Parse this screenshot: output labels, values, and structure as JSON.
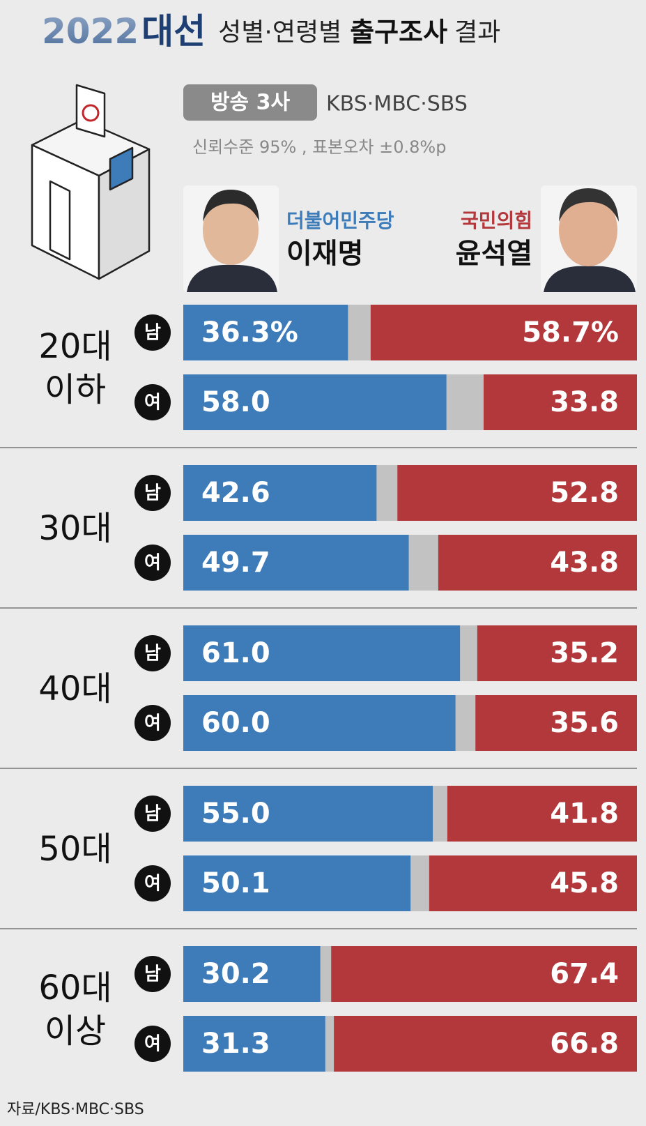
{
  "header": {
    "year": "2022",
    "main": "대선",
    "sub1": "성별·연령별",
    "bold": "출구조사",
    "sub2": "결과",
    "badge": "방송 3사",
    "broadcasters": "KBS·MBC·SBS",
    "note": "신뢰수준 95% , 표본오차 ±0.8%p"
  },
  "chart_data": {
    "type": "bar",
    "groups": [
      [
        "20대",
        "이하"
      ],
      [
        "30대"
      ],
      [
        "40대"
      ],
      [
        "50대"
      ],
      [
        "60대",
        "이상"
      ]
    ],
    "categories": [
      "남",
      "여",
      "남",
      "여",
      "남",
      "여",
      "남",
      "여",
      "남",
      "여"
    ],
    "xlim": [
      0,
      100
    ],
    "series": [
      {
        "name": "이재명",
        "party": "더불어민주당",
        "color": "#3d7bb9",
        "anchor": "start",
        "values": [
          36.3,
          58.0,
          42.6,
          49.7,
          61.0,
          60.0,
          55.0,
          50.1,
          30.2,
          31.3
        ],
        "value_labels": [
          "36.3%",
          "58.0",
          "42.6",
          "49.7",
          "61.0",
          "60.0",
          "55.0",
          "50.1",
          "30.2",
          "31.3"
        ]
      },
      {
        "name": "윤석열",
        "party": "국민의힘",
        "color": "#b3383b",
        "anchor": "end",
        "values": [
          58.7,
          33.8,
          52.8,
          43.8,
          35.2,
          35.6,
          41.8,
          45.8,
          67.4,
          66.8
        ],
        "value_labels": [
          "58.7%",
          "33.8",
          "52.8",
          "43.8",
          "35.2",
          "35.6",
          "41.8",
          "45.8",
          "67.4",
          "66.8"
        ]
      }
    ],
    "source": "자료/KBS·MBC·SBS"
  }
}
